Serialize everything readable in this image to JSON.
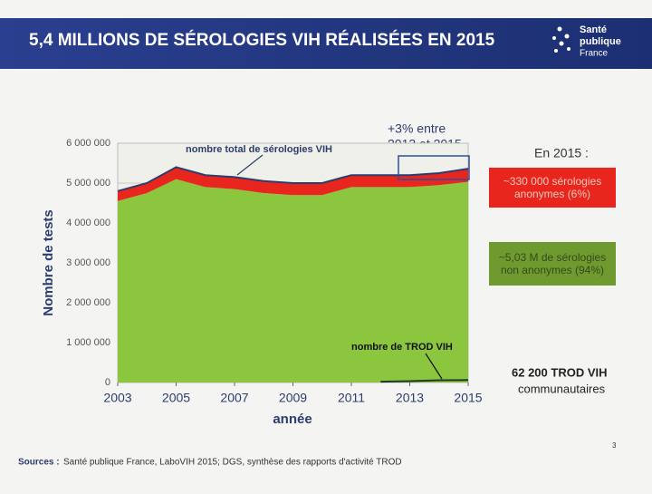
{
  "header": {
    "title": "5,4 MILLIONS DE SÉROLOGIES VIH RÉALISÉES EN 2015",
    "logo": [
      "Santé",
      "publique",
      "France"
    ]
  },
  "chart_data": {
    "type": "area",
    "y_label": "Nombre de tests",
    "x_label": "année",
    "x": [
      2003,
      2004,
      2005,
      2006,
      2007,
      2008,
      2009,
      2010,
      2011,
      2012,
      2013,
      2014,
      2015
    ],
    "xlim": [
      2003,
      2015
    ],
    "xticks": [
      2003,
      2005,
      2007,
      2009,
      2011,
      2013,
      2015
    ],
    "ylim": [
      0,
      6000000
    ],
    "yticks": [
      0,
      {
        "value": 1000000,
        "label": "1 000 000"
      },
      {
        "value": 2000000,
        "label": "2 000 000"
      },
      {
        "value": 3000000,
        "label": "3 000 000"
      },
      {
        "value": 4000000,
        "label": "4 000 000"
      },
      {
        "value": 5000000,
        "label": "5 000 000"
      },
      {
        "value": 6000000,
        "label": "6 000 000"
      }
    ],
    "grid": true,
    "series": [
      {
        "name": "~5,03 M de sérologies non anonymes (94%)",
        "color": "#8cc63f",
        "stack": true,
        "values": [
          4550000,
          4750000,
          5100000,
          4900000,
          4850000,
          4750000,
          4700000,
          4700000,
          4900000,
          4900000,
          4900000,
          4950000,
          5030000
        ]
      },
      {
        "name": "~330 000 sérologies anonymes (6%)",
        "color": "#e8261e",
        "stack": true,
        "values": [
          250000,
          250000,
          300000,
          300000,
          300000,
          300000,
          300000,
          300000,
          300000,
          300000,
          300000,
          300000,
          330000
        ]
      },
      {
        "name": "nombre total de sérologies VIH",
        "color": "#2c3d6e",
        "values": [
          4800000,
          5000000,
          5400000,
          5200000,
          5150000,
          5050000,
          5000000,
          5000000,
          5200000,
          5200000,
          5200000,
          5250000,
          5360000
        ]
      },
      {
        "name": "nombre de TROD VIH",
        "color": "#1f3a2a",
        "values": [
          null,
          null,
          null,
          null,
          null,
          null,
          null,
          null,
          null,
          20000,
          35000,
          56000,
          62200
        ]
      }
    ],
    "annotations": {
      "increase": [
        "+3% entre",
        "2013 et 2015"
      ],
      "year_heading": "En 2015 :",
      "trod": [
        "62 200 TROD VIH",
        "communautaires"
      ]
    }
  },
  "footer": {
    "source_label": "Sources :",
    "source_text": "Santé publique France, LaboVIH 2015; DGS, synthèse des rapports d'activité TROD",
    "page": "3"
  }
}
